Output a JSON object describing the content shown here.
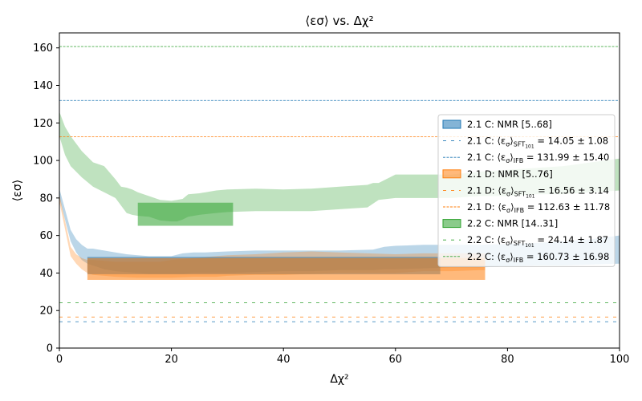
{
  "chart_data": {
    "type": "area",
    "title": "⟨εσ⟩  vs. Δχ²",
    "xlabel": "Δχ²",
    "ylabel": "⟨εσ⟩",
    "xlim": [
      0,
      100
    ],
    "ylim": [
      0,
      168
    ],
    "xticks": [
      0,
      20,
      40,
      60,
      80,
      100
    ],
    "yticks": [
      0,
      20,
      40,
      60,
      80,
      100,
      120,
      140,
      160
    ],
    "grid": false,
    "legend_position": "center-right",
    "colors": {
      "blue": "#1f77b4",
      "orange": "#ff7f0e",
      "green": "#2ca02c"
    },
    "bands": [
      {
        "color": "blue",
        "x": [
          0,
          2,
          3,
          4,
          5,
          6,
          7,
          8,
          10,
          12,
          14,
          16,
          18,
          20,
          22,
          24,
          26,
          30,
          35,
          40,
          45,
          50,
          56,
          58,
          60,
          65,
          70,
          75,
          80,
          85,
          90,
          95,
          100
        ],
        "lower": [
          80,
          57,
          51,
          47,
          45,
          44,
          43,
          42,
          41,
          40.5,
          40,
          39.5,
          39.5,
          39.5,
          39.5,
          40,
          40,
          40,
          40.5,
          41,
          41,
          41.5,
          41.5,
          42,
          42,
          42.5,
          43,
          43,
          43.5,
          44,
          44,
          44.5,
          45
        ],
        "upper": [
          85,
          63,
          58,
          55,
          53,
          53,
          52.5,
          52,
          51,
          50,
          49.5,
          49,
          49,
          49,
          50.5,
          51,
          51,
          51.5,
          52,
          52,
          52,
          52,
          52.5,
          54,
          54.5,
          55,
          55,
          55,
          55.5,
          56,
          57,
          58,
          60
        ]
      },
      {
        "color": "orange",
        "x": [
          0,
          2,
          3,
          4,
          5,
          6,
          8,
          10,
          14,
          18,
          20,
          24,
          28,
          30,
          35,
          40,
          45,
          50,
          55,
          60,
          65,
          70,
          75,
          76
        ],
        "lower": [
          78,
          49,
          45,
          42,
          40,
          39,
          38.5,
          38,
          37.5,
          37.5,
          37.5,
          38,
          38,
          38.5,
          39,
          39,
          39.5,
          40,
          40,
          40,
          41,
          41,
          41.5,
          41.5
        ],
        "upper": [
          82,
          54,
          50,
          48,
          47,
          47,
          46.5,
          46,
          46,
          46,
          47,
          48,
          49,
          49.5,
          50,
          51,
          51.5,
          51,
          50.5,
          50,
          50.5,
          50.5,
          50.5,
          50.5
        ]
      },
      {
        "color": "green",
        "x": [
          0,
          1,
          2,
          4,
          6,
          8,
          10,
          11,
          12,
          13,
          14,
          16,
          18,
          20,
          21,
          22,
          23,
          25,
          28,
          30,
          35,
          40,
          45,
          50,
          55,
          56,
          57,
          60,
          65,
          70,
          75,
          80,
          85,
          90,
          95,
          100
        ],
        "lower": [
          113,
          103,
          97,
          91,
          86,
          83,
          80,
          76,
          72,
          71,
          70.5,
          70,
          68,
          67.5,
          67.5,
          68.5,
          70,
          71,
          72,
          72.5,
          73,
          73,
          73,
          74,
          75,
          77,
          79,
          80,
          80,
          80,
          81,
          81,
          82,
          82,
          83,
          84
        ],
        "upper": [
          126,
          118,
          113,
          105,
          99,
          97,
          90,
          86,
          85.5,
          84.5,
          83,
          81,
          79,
          78.5,
          79,
          79.5,
          82,
          82.5,
          84,
          84.5,
          85,
          84.5,
          85,
          86,
          87,
          88,
          88,
          92.5,
          92.5,
          92.5,
          94,
          95,
          96,
          97,
          99,
          101
        ]
      }
    ],
    "boxes": [
      {
        "color": "blue",
        "x0": 5,
        "x1": 68,
        "y0": 39.35,
        "y1": 48.57
      },
      {
        "color": "orange",
        "x0": 5,
        "x1": 76,
        "y0": 36.36,
        "y1": 47.99
      },
      {
        "color": "green",
        "x0": 14,
        "x1": 31,
        "y0": 65.19,
        "y1": 77.49
      }
    ],
    "hlines": [
      {
        "color": "blue",
        "style": "loosely-dashed",
        "y": 14.05
      },
      {
        "color": "blue",
        "style": "dashed",
        "y": 131.99
      },
      {
        "color": "orange",
        "style": "loosely-dashed",
        "y": 16.56
      },
      {
        "color": "orange",
        "style": "dashed",
        "y": 112.63
      },
      {
        "color": "green",
        "style": "loosely-dashed",
        "y": 24.14
      },
      {
        "color": "green",
        "style": "dashed",
        "y": 160.73
      }
    ],
    "legend": [
      {
        "kind": "patch",
        "color": "blue",
        "label": "2.1 C: NMR [5..68]"
      },
      {
        "kind": "line",
        "color": "blue",
        "style": "loosely-dashed",
        "prefix": "2.1 C: ",
        "sub": "SFT",
        "subsub": "101",
        "suffix": " = 14.05 ± 1.08"
      },
      {
        "kind": "line",
        "color": "blue",
        "style": "dashed",
        "prefix": "2.1 C: ",
        "sub": "IFB",
        "subsub": "",
        "suffix": " = 131.99 ± 15.40"
      },
      {
        "kind": "patch",
        "color": "orange",
        "label": "2.1 D: NMR [5..76]"
      },
      {
        "kind": "line",
        "color": "orange",
        "style": "loosely-dashed",
        "prefix": "2.1 D: ",
        "sub": "SFT",
        "subsub": "101",
        "suffix": " = 16.56 ± 3.14"
      },
      {
        "kind": "line",
        "color": "orange",
        "style": "dashed",
        "prefix": "2.1 D: ",
        "sub": "IFB",
        "subsub": "",
        "suffix": " = 112.63 ± 11.78"
      },
      {
        "kind": "patch",
        "color": "green",
        "label": "2.2 C: NMR [14..31]"
      },
      {
        "kind": "line",
        "color": "green",
        "style": "loosely-dashed",
        "prefix": "2.2 C: ",
        "sub": "SFT",
        "subsub": "101",
        "suffix": " = 24.14 ± 1.87"
      },
      {
        "kind": "line",
        "color": "green",
        "style": "dashed",
        "prefix": "2.2 C: ",
        "sub": "IFB",
        "subsub": "",
        "suffix": " = 160.73 ± 16.98"
      }
    ]
  }
}
